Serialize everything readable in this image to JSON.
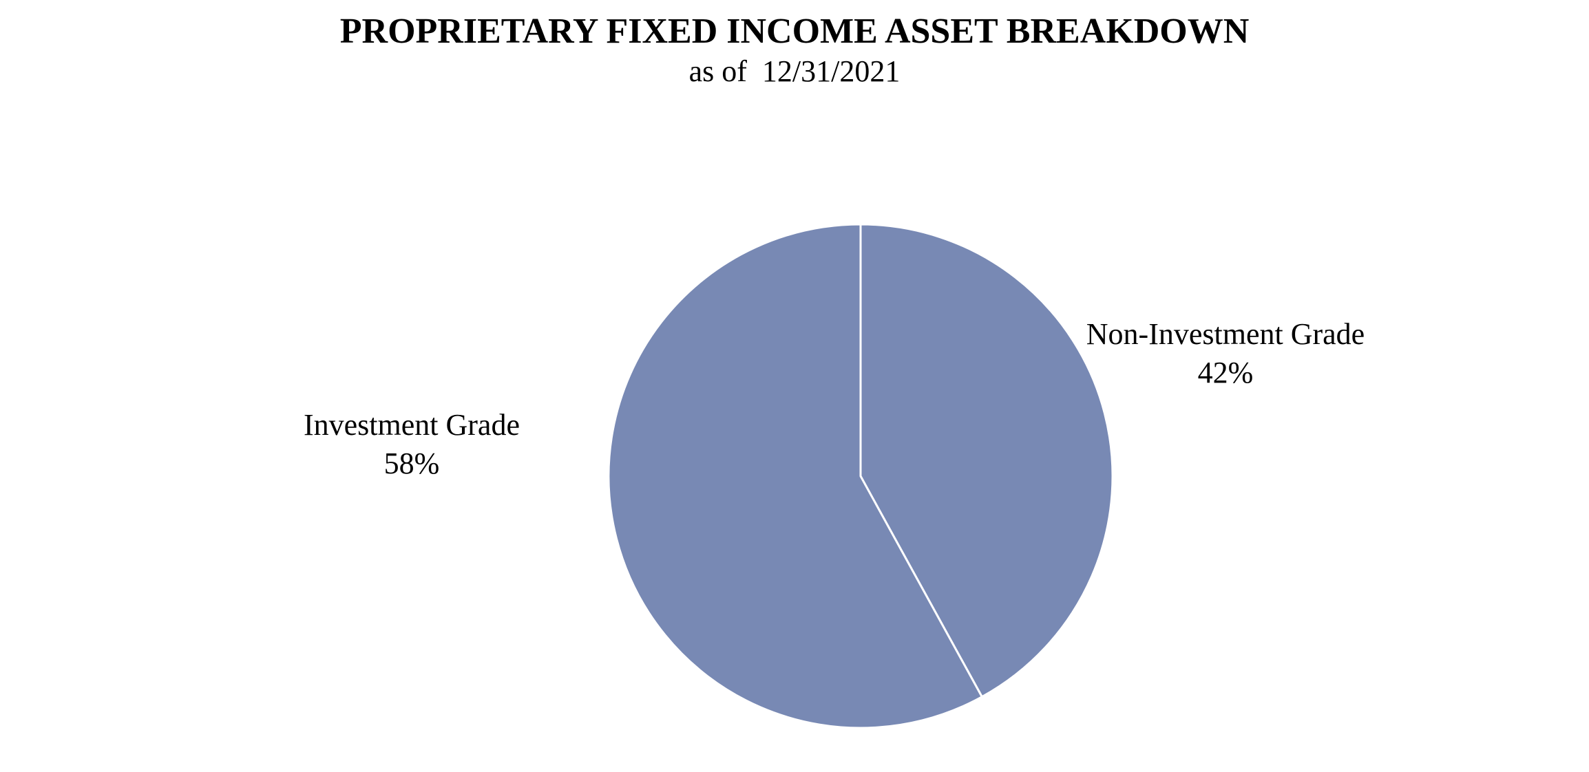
{
  "chart_data": {
    "type": "pie",
    "title": "PROPRIETARY FIXED INCOME ASSET BREAKDOWN",
    "subtitle": "as of  12/31/2021",
    "slices": [
      {
        "label": "Non-Investment Grade",
        "value": 42,
        "value_label": "42%"
      },
      {
        "label": "Investment Grade",
        "value": 58,
        "value_label": "58%"
      }
    ],
    "slice_color": "#7889b4",
    "separator_color": "#ffffff",
    "start": "12 o'clock",
    "direction": "clockwise",
    "legend": "none"
  }
}
